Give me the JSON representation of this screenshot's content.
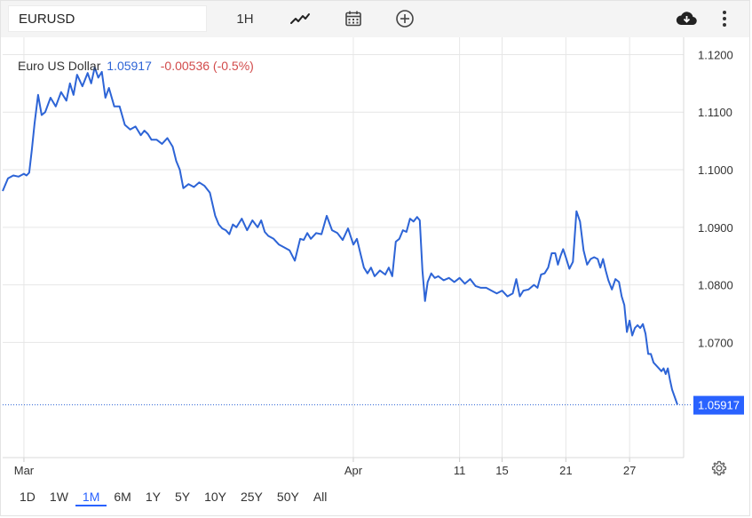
{
  "toolbar": {
    "symbol": "EURUSD",
    "interval": "1H",
    "icons": [
      "line-chart-style-icon",
      "calendar-icon",
      "add-comparison-icon",
      "download-icon",
      "more-vertical-icon"
    ]
  },
  "legend": {
    "name": "Euro US Dollar",
    "last": "1.05917",
    "change": "-0.00536 (-0.5%)"
  },
  "ranges": [
    "1D",
    "1W",
    "1M",
    "6M",
    "1Y",
    "5Y",
    "10Y",
    "25Y",
    "50Y",
    "All"
  ],
  "active_range": "1M",
  "colors": {
    "line": "#2d64d6",
    "negative": "#d24b4b",
    "active": "#2962ff",
    "grid": "#e6e6e6"
  },
  "chart_data": {
    "type": "line",
    "series": [
      {
        "name": "Euro US Dollar",
        "points": [
          [
            "Feb 28",
            1.0963
          ],
          [
            "Feb 28",
            1.0985
          ],
          [
            "Feb 29",
            1.099
          ],
          [
            "Feb 29",
            1.0988
          ],
          [
            "Mar 1",
            1.0993
          ],
          [
            "Mar 1",
            1.099
          ],
          [
            "Mar 1",
            1.0995
          ],
          [
            "Mar 1",
            1.1035
          ],
          [
            "Mar 2",
            1.108
          ],
          [
            "Mar 2",
            1.113
          ],
          [
            "Mar 2",
            1.1095
          ],
          [
            "Mar 3",
            1.11
          ],
          [
            "Mar 3",
            1.1125
          ],
          [
            "Mar 4",
            1.111
          ],
          [
            "Mar 4",
            1.1135
          ],
          [
            "Mar 5",
            1.112
          ],
          [
            "Mar 5",
            1.115
          ],
          [
            "Mar 5",
            1.113
          ],
          [
            "Mar 6",
            1.1165
          ],
          [
            "Mar 6",
            1.1145
          ],
          [
            "Mar 7",
            1.1168
          ],
          [
            "Mar 7",
            1.115
          ],
          [
            "Mar 7",
            1.1178
          ],
          [
            "Mar 8",
            1.116
          ],
          [
            "Mar 8",
            1.117
          ],
          [
            "Mar 8",
            1.1125
          ],
          [
            "Mar 9",
            1.1142
          ],
          [
            "Mar 9",
            1.111
          ],
          [
            "Mar 10",
            1.111
          ],
          [
            "Mar 10",
            1.1078
          ],
          [
            "Mar 11",
            1.107
          ],
          [
            "Mar 11",
            1.1075
          ],
          [
            "Mar 12",
            1.106
          ],
          [
            "Mar 12",
            1.1068
          ],
          [
            "Mar 12",
            1.1062
          ],
          [
            "Mar 13",
            1.1052
          ],
          [
            "Mar 13",
            1.1052
          ],
          [
            "Mar 14",
            1.1045
          ],
          [
            "Mar 14",
            1.1055
          ],
          [
            "Mar 15",
            1.104
          ],
          [
            "Mar 15",
            1.1015
          ],
          [
            "Mar 15",
            1.1
          ],
          [
            "Mar 16",
            1.0968
          ],
          [
            "Mar 16",
            1.0975
          ],
          [
            "Mar 17",
            1.097
          ],
          [
            "Mar 17",
            1.0978
          ],
          [
            "Mar 18",
            1.0972
          ],
          [
            "Mar 18",
            1.096
          ],
          [
            "Mar 19",
            1.092
          ],
          [
            "Mar 19",
            1.0905
          ],
          [
            "Mar 19",
            1.0898
          ],
          [
            "Mar 20",
            1.0895
          ],
          [
            "Mar 20",
            1.0888
          ],
          [
            "Mar 20",
            1.0905
          ],
          [
            "Mar 21",
            1.09
          ],
          [
            "Mar 21",
            1.0915
          ],
          [
            "Mar 22",
            1.0895
          ],
          [
            "Mar 22",
            1.0912
          ],
          [
            "Mar 23",
            1.09
          ],
          [
            "Mar 23",
            1.0912
          ],
          [
            "Mar 23",
            1.0892
          ],
          [
            "Mar 24",
            1.0885
          ],
          [
            "Mar 24",
            1.088
          ],
          [
            "Mar 25",
            1.087
          ],
          [
            "Mar 25",
            1.0865
          ],
          [
            "Mar 26",
            1.086
          ],
          [
            "Mar 26",
            1.0842
          ],
          [
            "Mar 27",
            1.088
          ],
          [
            "Mar 27",
            1.0878
          ],
          [
            "Mar 27",
            1.089
          ],
          [
            "Mar 28",
            1.088
          ],
          [
            "Mar 28",
            1.089
          ],
          [
            "Mar 29",
            1.0888
          ],
          [
            "Mar 29",
            1.092
          ],
          [
            "Mar 30",
            1.0895
          ],
          [
            "Mar 30",
            1.089
          ],
          [
            "Mar 31",
            1.0878
          ],
          [
            "Mar 31",
            1.0898
          ],
          [
            "Apr 1",
            1.087
          ],
          [
            "Apr 1",
            1.088
          ],
          [
            "Apr 1",
            1.0855
          ],
          [
            "Apr 2",
            1.083
          ],
          [
            "Apr 2",
            1.082
          ],
          [
            "Apr 2",
            1.083
          ],
          [
            "Apr 3",
            1.0815
          ],
          [
            "Apr 3",
            1.0825
          ],
          [
            "Apr 4",
            1.0818
          ],
          [
            "Apr 4",
            1.083
          ],
          [
            "Apr 4",
            1.0815
          ],
          [
            "Apr 5",
            1.0875
          ],
          [
            "Apr 5",
            1.088
          ],
          [
            "Apr 5",
            1.0895
          ],
          [
            "Apr 6",
            1.0892
          ],
          [
            "Apr 6",
            1.0915
          ],
          [
            "Apr 6",
            1.091
          ],
          [
            "Apr 7",
            1.0918
          ],
          [
            "Apr 7",
            1.0912
          ],
          [
            "Apr 7",
            1.0825
          ],
          [
            "Apr 7",
            1.0772
          ],
          [
            "Apr 8",
            1.0805
          ],
          [
            "Apr 8",
            1.082
          ],
          [
            "Apr 8",
            1.0812
          ],
          [
            "Apr 9",
            1.0815
          ],
          [
            "Apr 9",
            1.0808
          ],
          [
            "Apr 10",
            1.0812
          ],
          [
            "Apr 10",
            1.0805
          ],
          [
            "Apr 11",
            1.0812
          ],
          [
            "Apr 11",
            1.0802
          ],
          [
            "Apr 12",
            1.081
          ],
          [
            "Apr 12",
            1.0798
          ],
          [
            "Apr 13",
            1.0795
          ],
          [
            "Apr 13",
            1.0795
          ],
          [
            "Apr 14",
            1.079
          ],
          [
            "Apr 14",
            1.0785
          ],
          [
            "Apr 15",
            1.079
          ],
          [
            "Apr 15",
            1.078
          ],
          [
            "Apr 16",
            1.0785
          ],
          [
            "Apr 16",
            1.081
          ],
          [
            "Apr 16",
            1.078
          ],
          [
            "Apr 17",
            1.079
          ],
          [
            "Apr 17",
            1.0792
          ],
          [
            "Apr 18",
            1.08
          ],
          [
            "Apr 18",
            1.0795
          ],
          [
            "Apr 18",
            1.0818
          ],
          [
            "Apr 19",
            1.082
          ],
          [
            "Apr 19",
            1.083
          ],
          [
            "Apr 19",
            1.0855
          ],
          [
            "Apr 20",
            1.0855
          ],
          [
            "Apr 20",
            1.0835
          ],
          [
            "Apr 20",
            1.085
          ],
          [
            "Apr 20",
            1.0862
          ],
          [
            "Apr 21",
            1.0848
          ],
          [
            "Apr 21",
            1.0828
          ],
          [
            "Apr 21",
            1.084
          ],
          [
            "Apr 22",
            1.0928
          ],
          [
            "Apr 22",
            1.091
          ],
          [
            "Apr 22",
            1.086
          ],
          [
            "Apr 23",
            1.0835
          ],
          [
            "Apr 23",
            1.0845
          ],
          [
            "Apr 23",
            1.0848
          ],
          [
            "Apr 24",
            1.0845
          ],
          [
            "Apr 24",
            1.083
          ],
          [
            "Apr 24",
            1.0845
          ],
          [
            "Apr 24",
            1.0825
          ],
          [
            "Apr 25",
            1.0808
          ],
          [
            "Apr 25",
            1.0792
          ],
          [
            "Apr 25",
            1.081
          ],
          [
            "Apr 26",
            1.0805
          ],
          [
            "Apr 26",
            1.078
          ],
          [
            "Apr 26",
            1.0765
          ],
          [
            "Apr 26",
            1.0718
          ],
          [
            "Apr 27",
            1.0738
          ],
          [
            "Apr 27",
            1.0712
          ],
          [
            "Apr 27",
            1.0725
          ],
          [
            "Apr 27",
            1.073
          ],
          [
            "Apr 28",
            1.0725
          ],
          [
            "Apr 28",
            1.0732
          ],
          [
            "Apr 28",
            1.0715
          ],
          [
            "Apr 28",
            1.068
          ],
          [
            "Apr 29",
            1.068
          ],
          [
            "Apr 29",
            1.0665
          ],
          [
            "Apr 29",
            1.066
          ],
          [
            "Apr 29",
            1.0655
          ],
          [
            "Apr 30",
            1.065
          ],
          [
            "Apr 30",
            1.0655
          ],
          [
            "Apr 30",
            1.0645
          ],
          [
            "Apr 30",
            1.0655
          ],
          [
            "Apr 30",
            1.0635
          ],
          [
            "May 1",
            1.0618
          ],
          [
            "May 1",
            1.0592
          ]
        ]
      }
    ],
    "x_tick_labels": [
      "Mar",
      "Apr",
      "11",
      "15",
      "21",
      "27"
    ],
    "y_tick_labels": [
      "1.1200",
      "1.1100",
      "1.1000",
      "1.0900",
      "1.0800",
      "1.0700"
    ],
    "ylim": [
      1.05,
      1.123
    ],
    "last_value_label": "1.05917",
    "grid": true,
    "y_axis_position": "right"
  }
}
